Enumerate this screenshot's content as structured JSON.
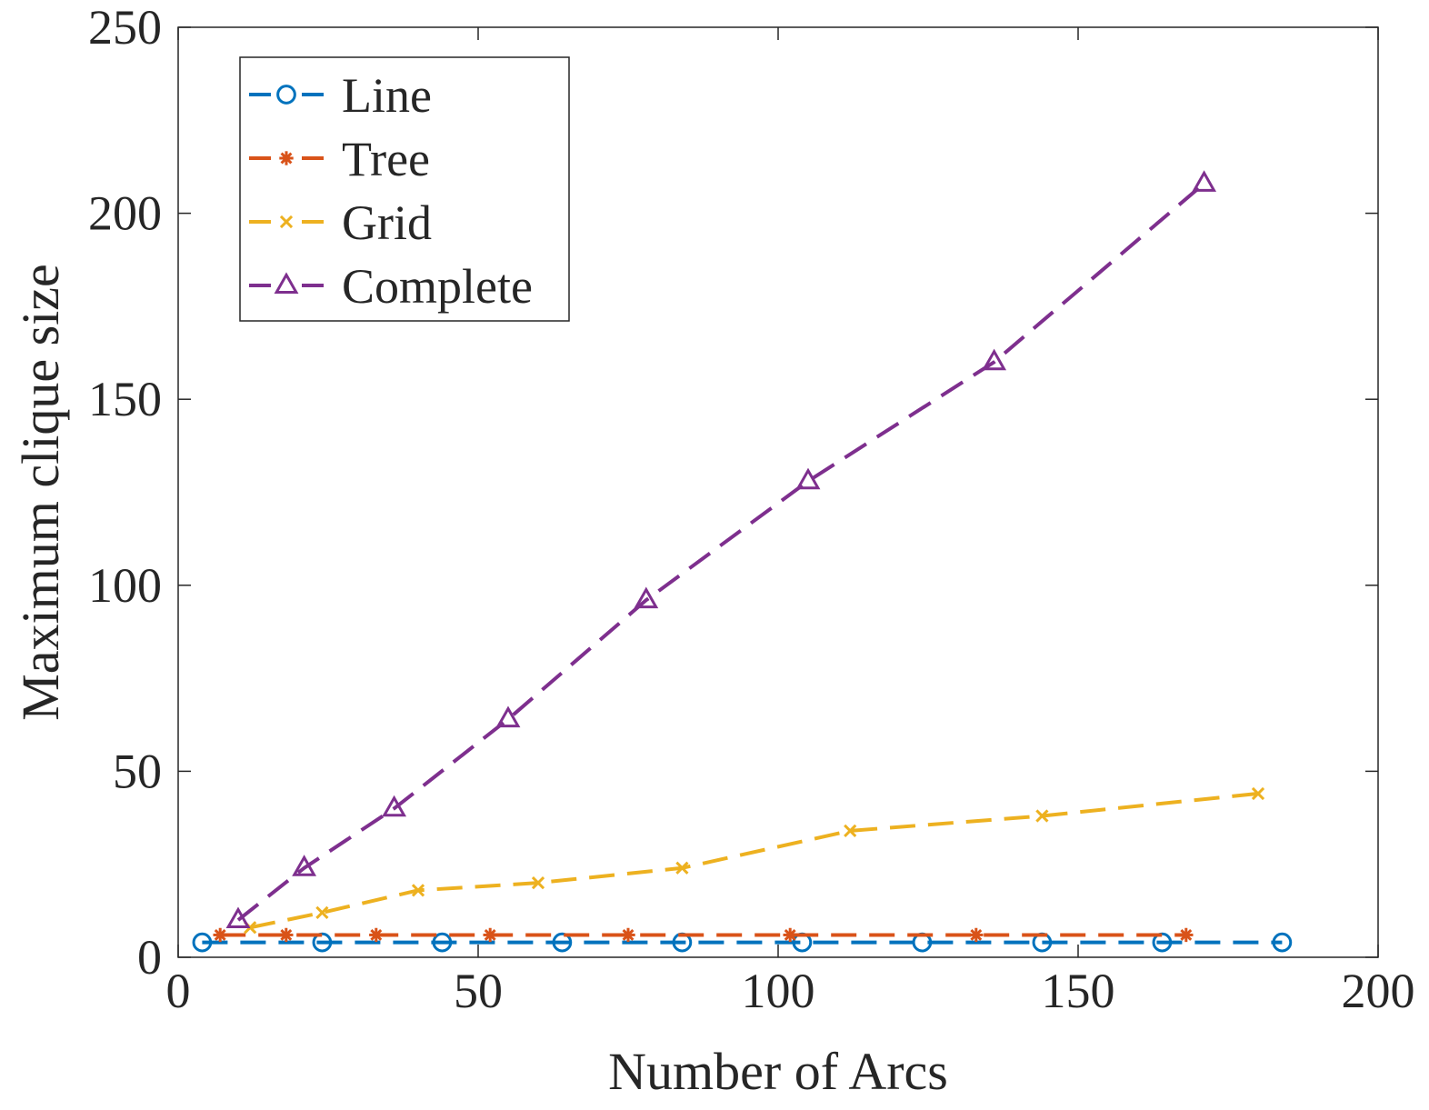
{
  "chart_data": {
    "type": "line",
    "title": "",
    "xlabel": "Number of Arcs",
    "ylabel": "Maximum clique size",
    "xlim": [
      0,
      200
    ],
    "ylim": [
      0,
      250
    ],
    "xticks": [
      0,
      50,
      100,
      150,
      200
    ],
    "yticks": [
      0,
      50,
      100,
      150,
      200,
      250
    ],
    "xtick_labels": [
      "0",
      "50",
      "100",
      "150",
      "200"
    ],
    "ytick_labels": [
      "0",
      "50",
      "100",
      "150",
      "200",
      "250"
    ],
    "grid": false,
    "legend_position": "top-left",
    "series": [
      {
        "name": "Line",
        "color": "#0072BD",
        "marker": "circle",
        "line_style": "dashed",
        "x": [
          4,
          24,
          44,
          64,
          84,
          104,
          124,
          144,
          164,
          184
        ],
        "values": [
          4,
          4,
          4,
          4,
          4,
          4,
          4,
          4,
          4,
          4
        ]
      },
      {
        "name": "Tree",
        "color": "#D95319",
        "marker": "asterisk",
        "line_style": "dashed",
        "x": [
          7,
          18,
          33,
          52,
          75,
          102,
          133,
          168
        ],
        "values": [
          6,
          6,
          6,
          6,
          6,
          6,
          6,
          6
        ]
      },
      {
        "name": "Grid",
        "color": "#EDB120",
        "marker": "x",
        "line_style": "dashed",
        "x": [
          12,
          24,
          40,
          60,
          84,
          112,
          144,
          180
        ],
        "values": [
          8,
          12,
          18,
          20,
          24,
          34,
          38,
          44
        ]
      },
      {
        "name": "Complete",
        "color": "#7E2F8E",
        "marker": "triangle",
        "line_style": "dashed",
        "x": [
          10,
          21,
          36,
          55,
          78,
          105,
          136,
          171
        ],
        "values": [
          10,
          24,
          40,
          64,
          96,
          128,
          160,
          208
        ]
      }
    ]
  }
}
